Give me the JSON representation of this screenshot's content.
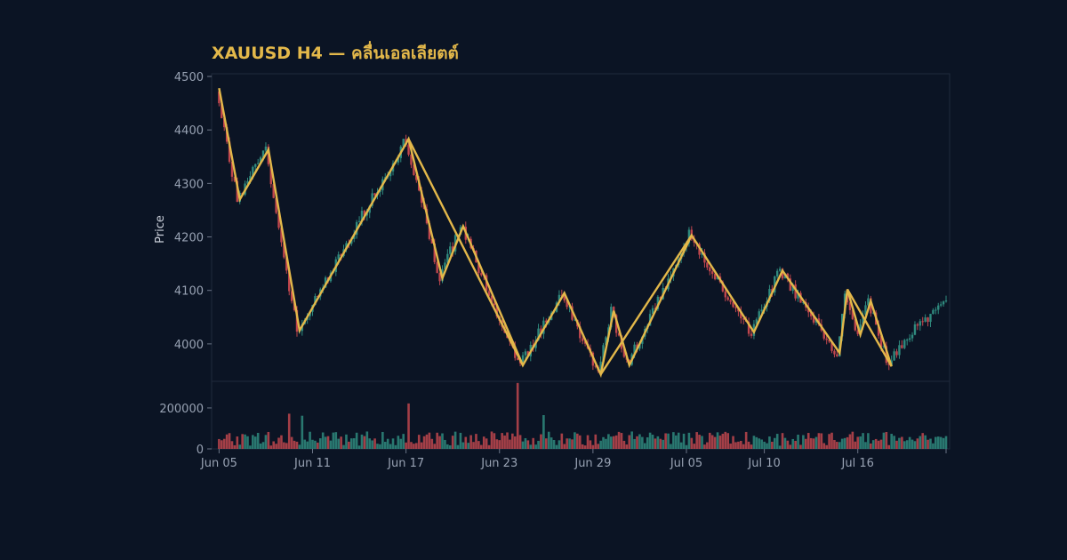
{
  "colors": {
    "background": "#0b1424",
    "plot_border": "#1f2a3c",
    "up": "#2f8a7e",
    "down": "#c0464d",
    "wave": "#e3b84a",
    "text": "#98a2b3",
    "title": "#e3b84a"
  },
  "chart_data": {
    "type": "candlestick",
    "title": "XAUUSD H4 — คลื่นเอลเลียตต์",
    "ylabel": "Price",
    "xlabel": "",
    "ylim": [
      3930,
      4505
    ],
    "volume_ylim": [
      0,
      330000
    ],
    "y_ticks": [
      4000,
      4100,
      4200,
      4300,
      4400,
      4500
    ],
    "volume_ticks": [
      0,
      200000
    ],
    "x_range": [
      "2025-06-04T18:00",
      "2025-07-21T16:00"
    ],
    "x_ticks": [
      {
        "label": "Jun 05",
        "t": "2025-06-05"
      },
      {
        "label": "Jun 11",
        "t": "2025-06-11"
      },
      {
        "label": "Jun 17",
        "t": "2025-06-17"
      },
      {
        "label": "Jun 23",
        "t": "2025-06-23"
      },
      {
        "label": "Jun 29",
        "t": "2025-06-29"
      },
      {
        "label": "Jul 05",
        "t": "2025-07-05"
      },
      {
        "label": "Jul 10",
        "t": "2025-07-10"
      },
      {
        "label": "Jul 16",
        "t": "2025-07-16"
      }
    ],
    "grid": false,
    "candle_interval": "4h",
    "ohlc_anchors": [
      {
        "t": "2025-06-05T00:00",
        "price": 4478
      },
      {
        "t": "2025-06-06T08:00",
        "price": 4270
      },
      {
        "t": "2025-06-08T04:00",
        "price": 4363
      },
      {
        "t": "2025-06-10T04:00",
        "price": 4025
      },
      {
        "t": "2025-06-17T04:00",
        "price": 4383
      },
      {
        "t": "2025-06-19T08:00",
        "price": 4123
      },
      {
        "t": "2025-06-20T16:00",
        "price": 4220
      },
      {
        "t": "2025-06-24T12:00",
        "price": 3960
      },
      {
        "t": "2025-06-27T04:00",
        "price": 4095
      },
      {
        "t": "2025-06-29T12:00",
        "price": 3943
      },
      {
        "t": "2025-06-30T08:00",
        "price": 4062
      },
      {
        "t": "2025-07-01T08:00",
        "price": 3960
      },
      {
        "t": "2025-07-05T08:00",
        "price": 4203
      },
      {
        "t": "2025-07-09T08:00",
        "price": 4022
      },
      {
        "t": "2025-07-11T04:00",
        "price": 4137
      },
      {
        "t": "2025-07-14T20:00",
        "price": 3983
      },
      {
        "t": "2025-07-15T08:00",
        "price": 4102
      },
      {
        "t": "2025-07-16T04:00",
        "price": 4017
      },
      {
        "t": "2025-07-16T20:00",
        "price": 4080
      },
      {
        "t": "2025-07-18T04:00",
        "price": 3958
      },
      {
        "t": "2025-07-19T04:00",
        "price": 4010
      },
      {
        "t": "2025-07-20T12:00",
        "price": 4045
      },
      {
        "t": "2025-07-21T16:00",
        "price": 4082
      }
    ],
    "wave_lines": [
      [
        {
          "t": "2025-06-05T00:00",
          "price": 4478
        },
        {
          "t": "2025-06-06T08:00",
          "price": 4270
        },
        {
          "t": "2025-06-08T04:00",
          "price": 4363
        },
        {
          "t": "2025-06-10T04:00",
          "price": 4025
        },
        {
          "t": "2025-06-17T04:00",
          "price": 4383
        },
        {
          "t": "2025-06-19T08:00",
          "price": 4123
        },
        {
          "t": "2025-06-20T16:00",
          "price": 4220
        },
        {
          "t": "2025-06-24T12:00",
          "price": 3960
        },
        {
          "t": "2025-06-27T04:00",
          "price": 4095
        },
        {
          "t": "2025-06-29T12:00",
          "price": 3943
        },
        {
          "t": "2025-06-30T08:00",
          "price": 4062
        },
        {
          "t": "2025-07-01T08:00",
          "price": 3960
        },
        {
          "t": "2025-07-05T08:00",
          "price": 4203
        },
        {
          "t": "2025-07-09T08:00",
          "price": 4022
        },
        {
          "t": "2025-07-11T04:00",
          "price": 4137
        },
        {
          "t": "2025-07-14T20:00",
          "price": 3983
        },
        {
          "t": "2025-07-15T08:00",
          "price": 4102
        },
        {
          "t": "2025-07-16T04:00",
          "price": 4017
        },
        {
          "t": "2025-07-16T20:00",
          "price": 4080
        },
        {
          "t": "2025-07-18T04:00",
          "price": 3958
        }
      ],
      [
        {
          "t": "2025-06-17T04:00",
          "price": 4383
        },
        {
          "t": "2025-06-24T12:00",
          "price": 3960
        }
      ],
      [
        {
          "t": "2025-06-29T12:00",
          "price": 3943
        },
        {
          "t": "2025-07-05T08:00",
          "price": 4203
        }
      ],
      [
        {
          "t": "2025-07-15T08:00",
          "price": 4102
        },
        {
          "t": "2025-07-18T04:00",
          "price": 3958
        }
      ]
    ],
    "volume_spikes": [
      {
        "t": "2025-06-17T04:00",
        "value": 222000
      },
      {
        "t": "2025-06-24T04:00",
        "value": 322000
      },
      {
        "t": "2025-06-25T20:00",
        "value": 165000
      },
      {
        "t": "2025-06-09T12:00",
        "value": 172000
      },
      {
        "t": "2025-06-10T08:00",
        "value": 162000
      }
    ]
  }
}
